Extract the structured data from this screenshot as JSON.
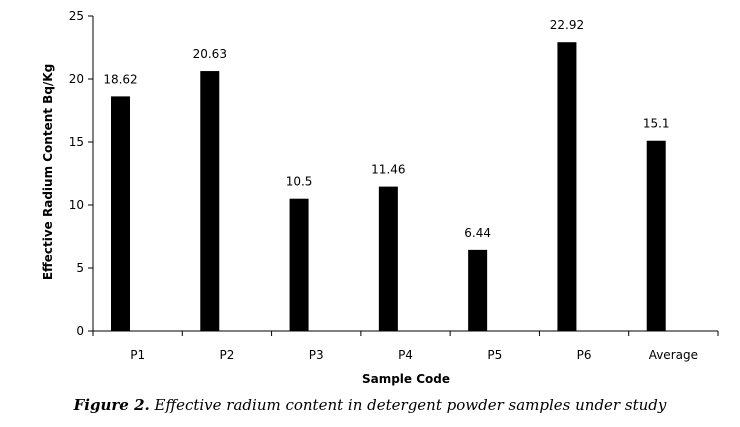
{
  "chart_data": {
    "type": "bar",
    "categories": [
      "P1",
      "P2",
      "P3",
      "P4",
      "P5",
      "P6",
      "Average"
    ],
    "values": [
      18.62,
      20.63,
      10.5,
      11.46,
      6.44,
      22.92,
      15.1
    ],
    "data_labels": [
      "18.62",
      "20.63",
      "10.5",
      "11.46",
      "6.44",
      "22.92",
      "15.1"
    ],
    "xlabel": "Sample Code",
    "ylabel": "Effective Radium Content Bq/Kg",
    "ylim": [
      0,
      25
    ],
    "yticks": [
      "0",
      "5",
      "10",
      "15",
      "20",
      "25"
    ],
    "grid": false,
    "bar_color": "#000000"
  },
  "caption": {
    "prefix": "Figure 2.",
    "text": " Effective radium content in detergent powder samples under study"
  }
}
